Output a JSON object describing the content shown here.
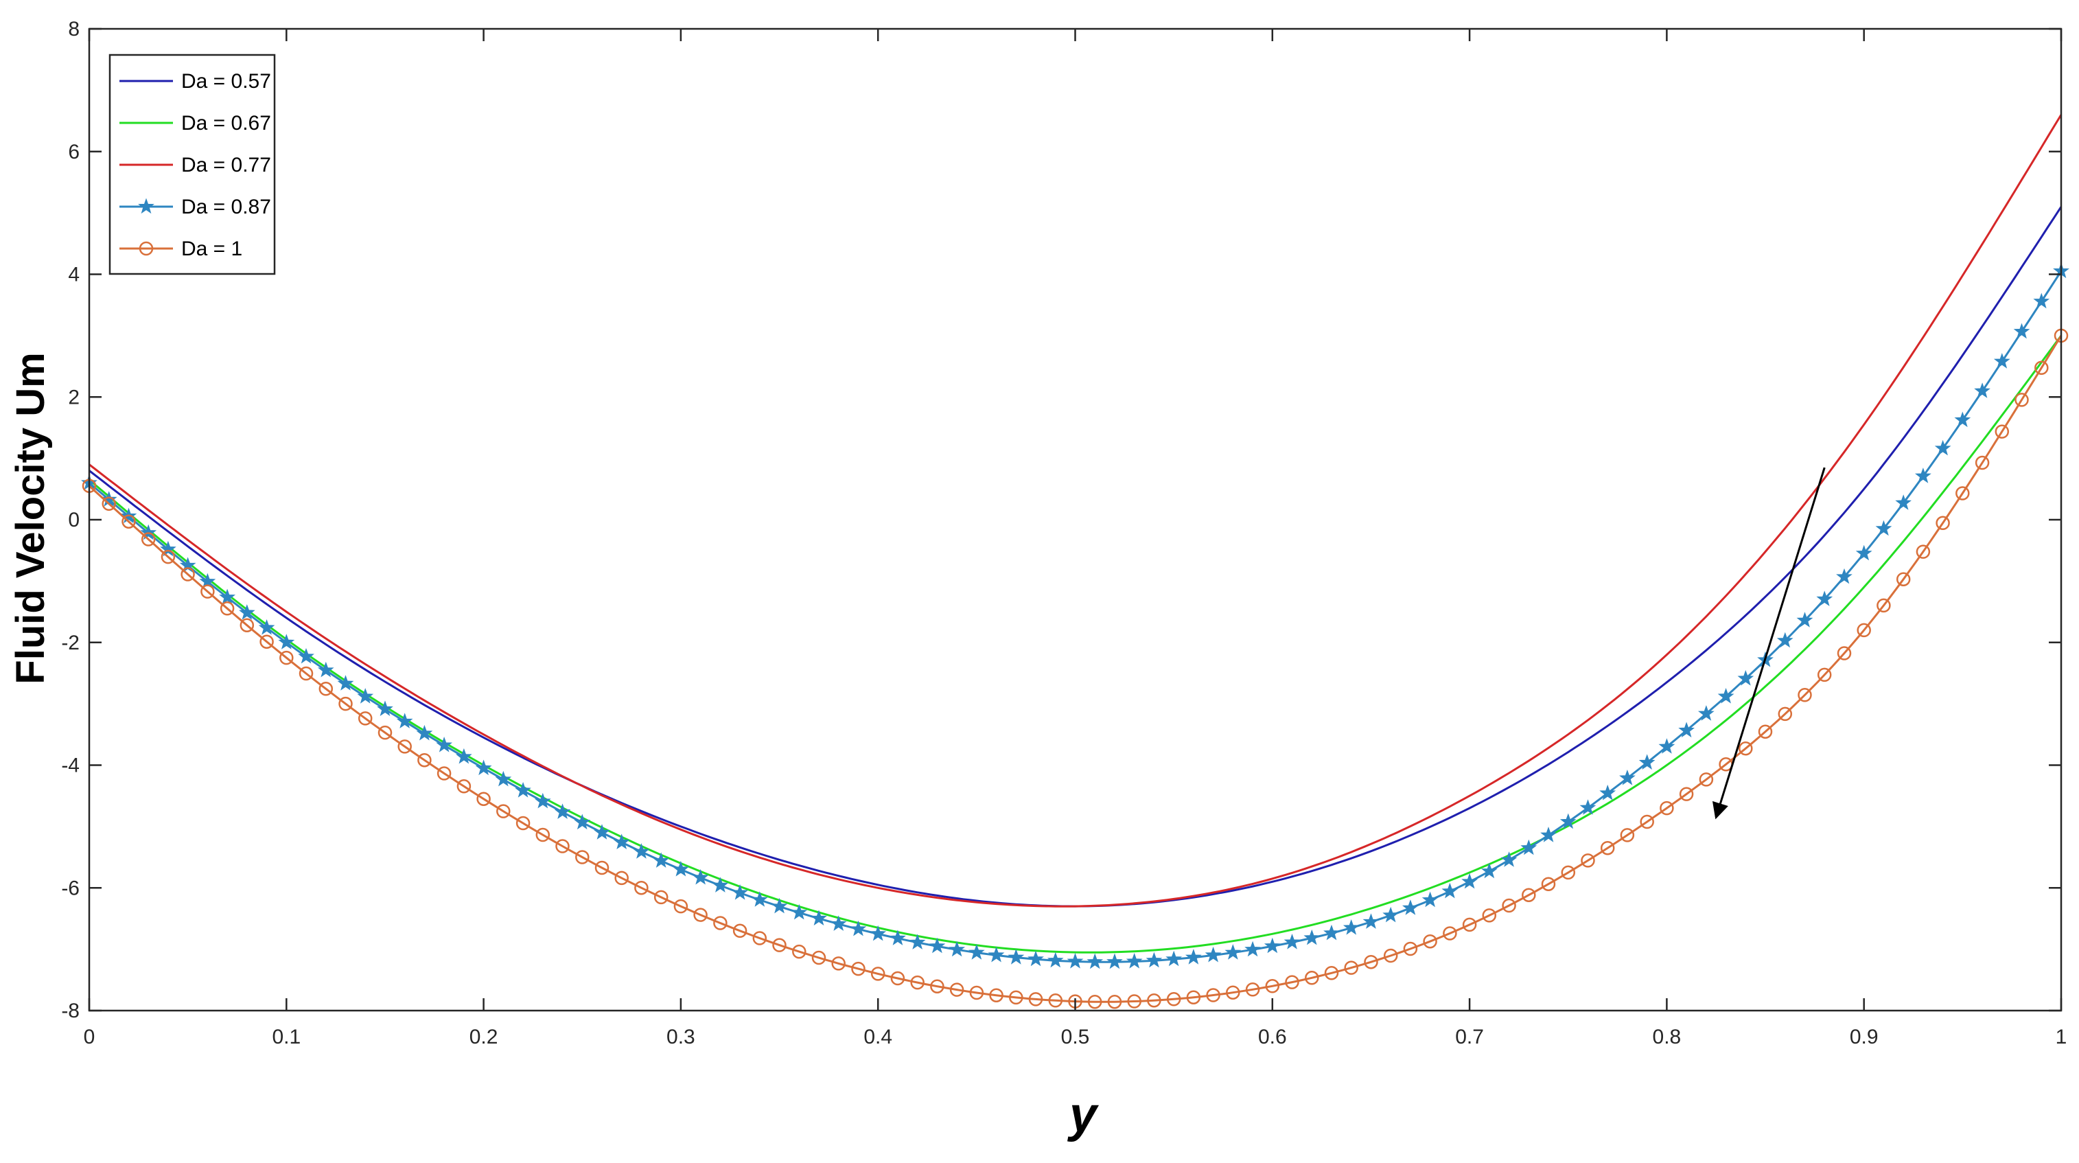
{
  "chart_data": {
    "type": "line",
    "title": "",
    "xlabel": "y",
    "ylabel": "Fluid Velocity Um",
    "xlim": [
      0,
      1
    ],
    "ylim": [
      -8,
      8
    ],
    "xticks": [
      "0",
      "0.1",
      "0.2",
      "0.3",
      "0.4",
      "0.5",
      "0.6",
      "0.7",
      "0.8",
      "0.9",
      "1"
    ],
    "yticks": [
      "-8",
      "-6",
      "-4",
      "-2",
      "0",
      "2",
      "4",
      "6",
      "8"
    ],
    "grid": false,
    "legend_position": "top-left",
    "x": [
      0,
      0.1,
      0.2,
      0.3,
      0.4,
      0.5,
      0.6,
      0.7,
      0.8,
      0.9,
      1.0
    ],
    "series": [
      {
        "name": "Da = 0.57",
        "color": "#1f1fae",
        "marker": "none",
        "values": [
          0.8,
          -1.6,
          -3.55,
          -5.0,
          -5.95,
          -6.3,
          -5.9,
          -4.7,
          -2.65,
          0.5,
          5.1
        ]
      },
      {
        "name": "Da = 0.67",
        "color": "#22dd22",
        "marker": "none",
        "values": [
          0.65,
          -1.95,
          -4.0,
          -5.6,
          -6.65,
          -7.05,
          -6.75,
          -5.75,
          -4.0,
          -1.1,
          3.0
        ]
      },
      {
        "name": "Da = 0.77",
        "color": "#d62728",
        "marker": "none",
        "values": [
          0.9,
          -1.5,
          -3.5,
          -5.05,
          -6.0,
          -6.3,
          -5.85,
          -4.5,
          -2.2,
          1.55,
          6.6
        ]
      },
      {
        "name": "Da = 0.87",
        "color": "#2e86c1",
        "marker": "star",
        "values": [
          0.6,
          -2.0,
          -4.05,
          -5.7,
          -6.75,
          -7.2,
          -6.95,
          -5.9,
          -3.7,
          -0.55,
          4.05
        ]
      },
      {
        "name": "Da = 1",
        "color": "#d9703a",
        "marker": "circle",
        "values": [
          0.55,
          -2.25,
          -4.55,
          -6.3,
          -7.4,
          -7.85,
          -7.6,
          -6.6,
          -4.7,
          -1.8,
          3.0
        ]
      }
    ],
    "annotations": [
      {
        "type": "arrow",
        "from": [
          0.88,
          0.85
        ],
        "to": [
          0.825,
          -4.85
        ]
      }
    ]
  }
}
